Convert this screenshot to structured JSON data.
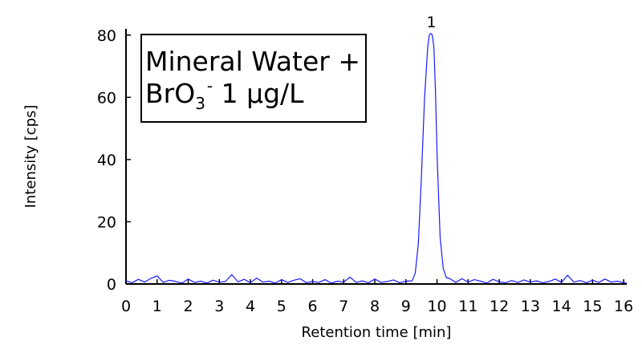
{
  "chart_data": {
    "type": "line",
    "xlabel": "Retention time [min]",
    "ylabel": "Intensity [cps]",
    "xlim": [
      0,
      16.1
    ],
    "ylim": [
      0,
      82
    ],
    "x_ticks": [
      0,
      1,
      2,
      3,
      4,
      5,
      6,
      7,
      8,
      9,
      10,
      11,
      12,
      13,
      14,
      15,
      16
    ],
    "y_ticks": [
      0,
      20,
      40,
      60,
      80
    ],
    "grid": false,
    "line_color": "#1a1aff",
    "annotation": {
      "line1": "Mineral Water +",
      "line2_prefix": "BrO",
      "line2_subscript": "3",
      "line2_superscript": "-",
      "line2_suffix": " 1 µg/L"
    },
    "peaks": [
      {
        "label": "1",
        "x": 9.82,
        "y": 80.5
      }
    ],
    "series": [
      {
        "x": [
          0,
          0.2,
          0.4,
          0.6,
          0.8,
          1.0,
          1.2,
          1.4,
          1.6,
          1.8,
          2.0,
          2.2,
          2.4,
          2.6,
          2.8,
          3.0,
          3.2,
          3.4,
          3.6,
          3.8,
          4.0,
          4.2,
          4.4,
          4.6,
          4.8,
          5.0,
          5.2,
          5.4,
          5.6,
          5.8,
          6.0,
          6.2,
          6.4,
          6.6,
          6.8,
          7.0,
          7.2,
          7.4,
          7.6,
          7.8,
          8.0,
          8.2,
          8.4,
          8.6,
          8.8,
          9.0,
          9.2,
          9.3,
          9.4,
          9.5,
          9.6,
          9.7,
          9.75,
          9.8,
          9.85,
          9.9,
          9.95,
          10.0,
          10.1,
          10.2,
          10.3,
          10.4,
          10.6,
          10.8,
          11.0,
          11.2,
          11.4,
          11.6,
          11.8,
          12.0,
          12.2,
          12.4,
          12.6,
          12.8,
          13.0,
          13.2,
          13.4,
          13.6,
          13.8,
          14.0,
          14.2,
          14.4,
          14.6,
          14.8,
          15.0,
          15.2,
          15.4,
          15.6,
          15.8,
          16.0,
          16.1
        ],
        "y": [
          1.0,
          0.4,
          1.5,
          0.6,
          1.8,
          2.6,
          0.5,
          1.2,
          0.8,
          0.3,
          1.6,
          0.5,
          0.9,
          0.3,
          1.2,
          0.6,
          0.8,
          3.0,
          0.7,
          1.5,
          0.4,
          1.9,
          0.6,
          0.9,
          0.3,
          1.4,
          0.5,
          1.2,
          1.7,
          0.4,
          0.8,
          0.5,
          1.4,
          0.3,
          0.9,
          0.6,
          2.2,
          0.5,
          1.0,
          0.4,
          1.6,
          0.5,
          0.8,
          1.3,
          0.4,
          0.9,
          1.0,
          3.5,
          13.0,
          35.0,
          60.0,
          76.0,
          80.0,
          80.5,
          80.0,
          76.0,
          62.0,
          42.0,
          15.0,
          5.0,
          2.0,
          1.8,
          0.5,
          1.7,
          0.6,
          1.4,
          0.9,
          0.3,
          1.5,
          0.7,
          0.4,
          1.1,
          0.5,
          1.3,
          0.6,
          1.0,
          0.4,
          0.8,
          1.6,
          0.5,
          2.8,
          0.6,
          1.1,
          0.4,
          1.2,
          0.5,
          1.6,
          0.6,
          0.9,
          0.4,
          0.3
        ]
      }
    ]
  }
}
